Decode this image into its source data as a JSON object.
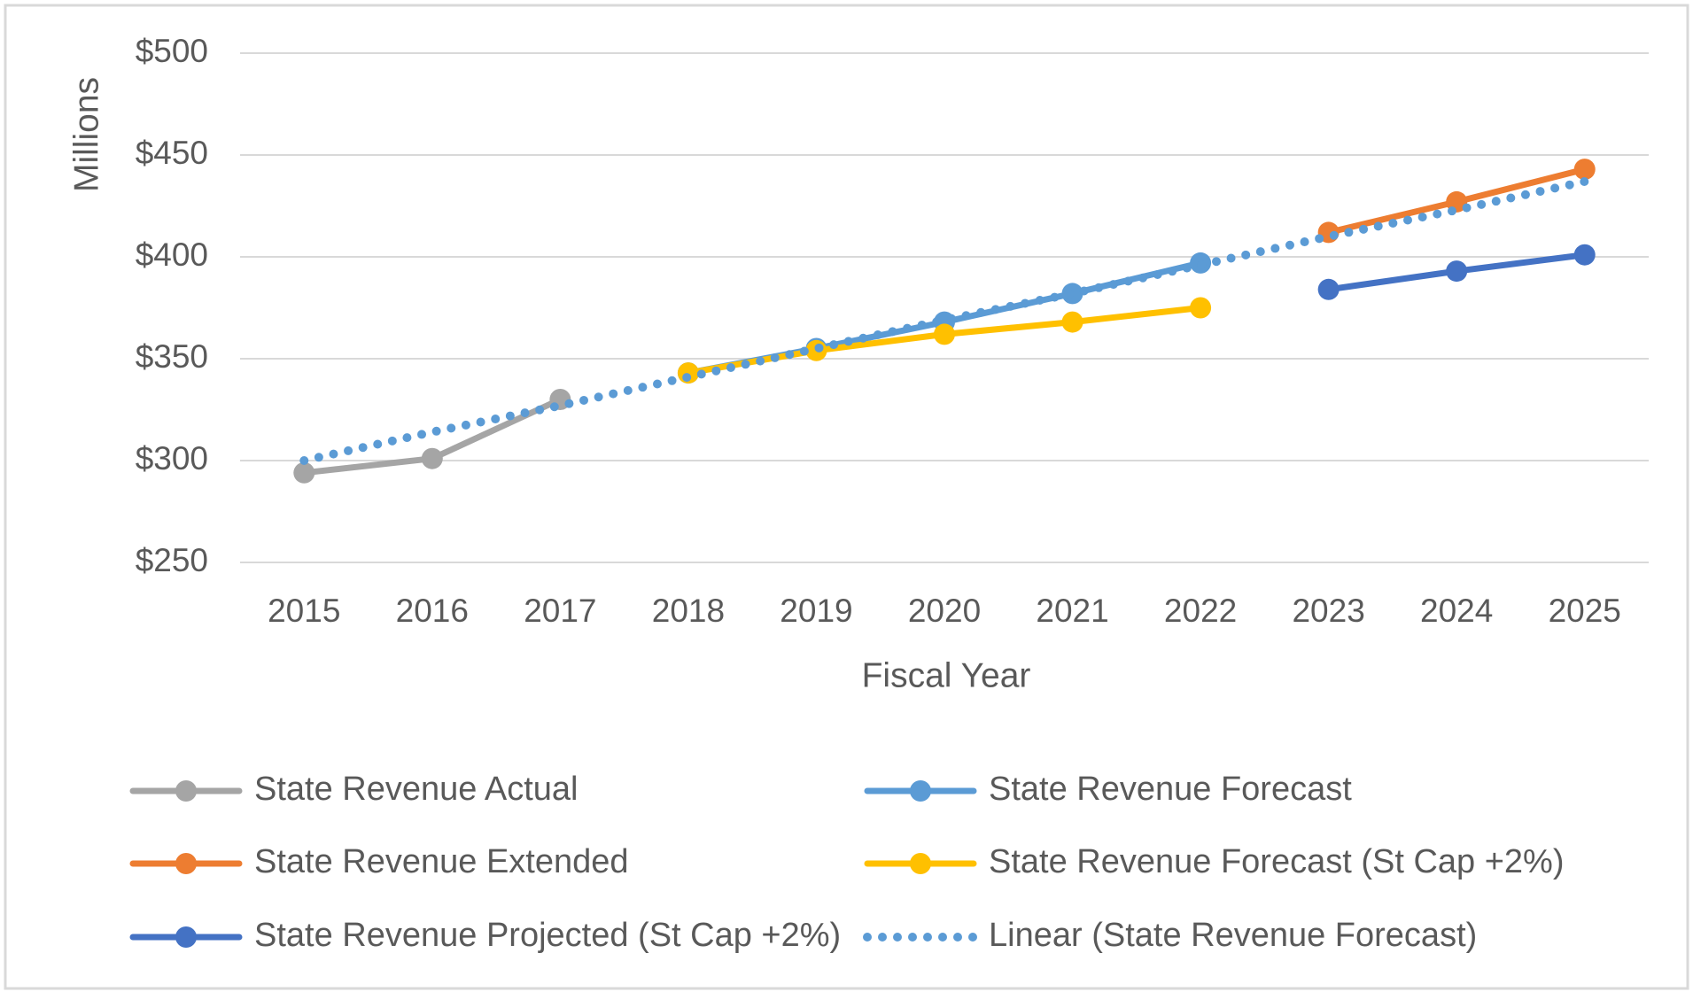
{
  "chart_data": {
    "type": "line",
    "y_axis_label": "Millions",
    "x_axis_label": "Fiscal Year",
    "categories": [
      "2015",
      "2016",
      "2017",
      "2018",
      "2019",
      "2020",
      "2021",
      "2022",
      "2023",
      "2024",
      "2025"
    ],
    "ylim": [
      250,
      500
    ],
    "yticks": [
      {
        "value": 250,
        "label": "$250"
      },
      {
        "value": 300,
        "label": "$300"
      },
      {
        "value": 350,
        "label": "$350"
      },
      {
        "value": 400,
        "label": "$400"
      },
      {
        "value": 450,
        "label": "$450"
      },
      {
        "value": 500,
        "label": "$500"
      }
    ],
    "grid": true,
    "legend": "bottom",
    "series": [
      {
        "name": "State Revenue Actual",
        "color": "#a5a5a5",
        "markers": true,
        "dash": "solid",
        "values": [
          294,
          301,
          330,
          null,
          null,
          null,
          null,
          null,
          null,
          null,
          null
        ]
      },
      {
        "name": "State Revenue Forecast",
        "color": "#5b9bd5",
        "markers": true,
        "dash": "solid",
        "values": [
          null,
          null,
          null,
          343,
          355,
          368,
          382,
          397,
          null,
          null,
          null
        ]
      },
      {
        "name": "State Revenue Extended",
        "color": "#ed7d31",
        "markers": true,
        "dash": "solid",
        "values": [
          null,
          null,
          null,
          null,
          null,
          null,
          null,
          null,
          412,
          427,
          443
        ]
      },
      {
        "name": "State Revenue Forecast (St Cap +2%)",
        "color": "#ffc000",
        "markers": true,
        "dash": "solid",
        "values": [
          null,
          null,
          null,
          343,
          354,
          362,
          368,
          375,
          null,
          null,
          null
        ]
      },
      {
        "name": "State Revenue Projected (St Cap +2%)",
        "color": "#4472c4",
        "markers": true,
        "dash": "solid",
        "values": [
          null,
          null,
          null,
          null,
          null,
          null,
          null,
          null,
          384,
          393,
          401
        ]
      },
      {
        "name": "Linear (State Revenue Forecast)",
        "color": "#5b9bd5",
        "markers": false,
        "dash": "dotted",
        "values": [
          300,
          314,
          327,
          341,
          355,
          369,
          382,
          396,
          410,
          423,
          437
        ]
      }
    ]
  }
}
